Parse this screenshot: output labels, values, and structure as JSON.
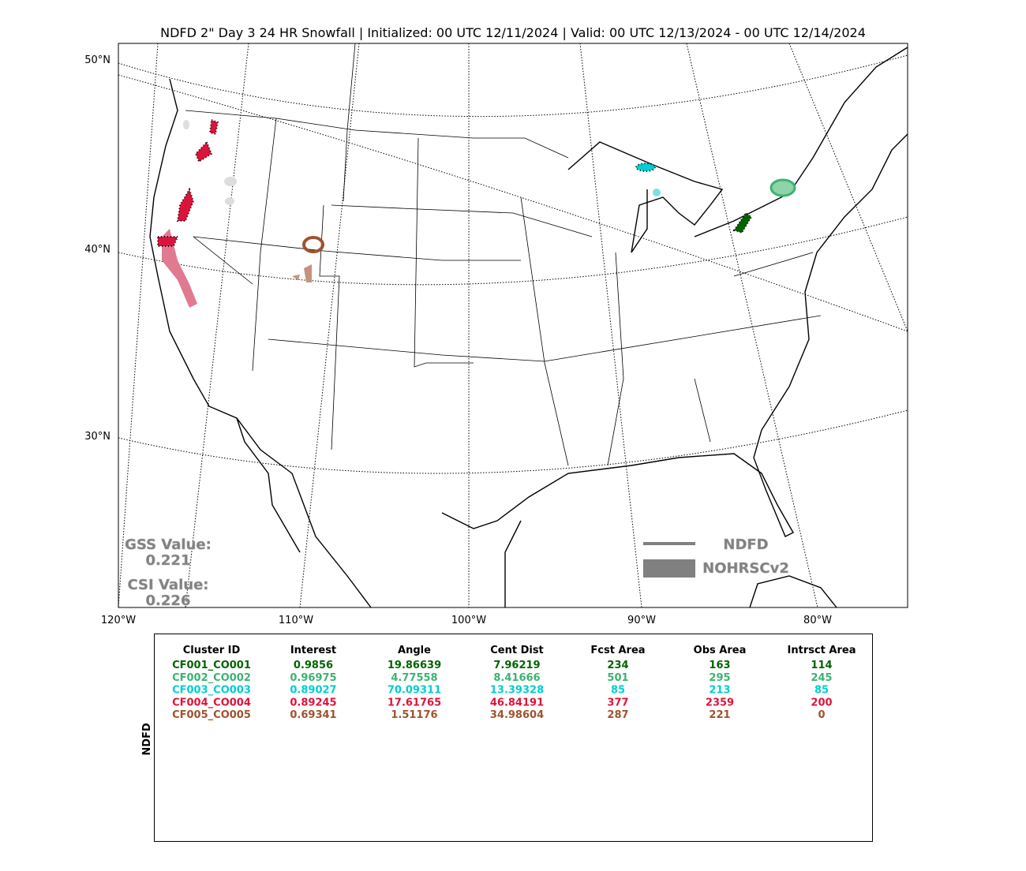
{
  "title": "NDFD 2\" Day 3 24 HR Snowfall | Initialized: 00 UTC 12/11/2024 | Valid: 00 UTC 12/13/2024 - 00 UTC 12/14/2024",
  "map": {
    "lat_labels": [
      "50°N",
      "40°N",
      "30°N"
    ],
    "lon_labels": [
      "120°W",
      "110°W",
      "100°W",
      "90°W",
      "80°W"
    ],
    "legend": [
      "NDFD",
      "NOHRSCv2"
    ],
    "stats": [
      {
        "label": "GSS Value:",
        "value": "0.221"
      },
      {
        "label": "CSI Value:",
        "value": "0.226"
      }
    ]
  },
  "table": {
    "side_label": "NDFD",
    "columns": [
      "Cluster ID",
      "Interest",
      "Angle",
      "Cent Dist",
      "Fcst Area",
      "Obs Area",
      "Intrsct Area"
    ],
    "rows": [
      {
        "color": "#006400",
        "cells": [
          "CF001_CO001",
          "0.9856",
          "19.86639",
          "7.96219",
          "234",
          "163",
          "114"
        ]
      },
      {
        "color": "#3cb371",
        "cells": [
          "CF002_CO002",
          "0.96975",
          "4.77558",
          "8.41666",
          "501",
          "295",
          "245"
        ]
      },
      {
        "color": "#00ced1",
        "cells": [
          "CF003_CO003",
          "0.89027",
          "70.09311",
          "13.39328",
          "85",
          "213",
          "85"
        ]
      },
      {
        "color": "#dc143c",
        "cells": [
          "CF004_CO004",
          "0.89245",
          "17.61765",
          "46.84191",
          "377",
          "2359",
          "200"
        ]
      },
      {
        "color": "#a0522d",
        "cells": [
          "CF005_CO005",
          "0.69341",
          "1.51176",
          "34.98604",
          "287",
          "221",
          "0"
        ]
      }
    ]
  }
}
